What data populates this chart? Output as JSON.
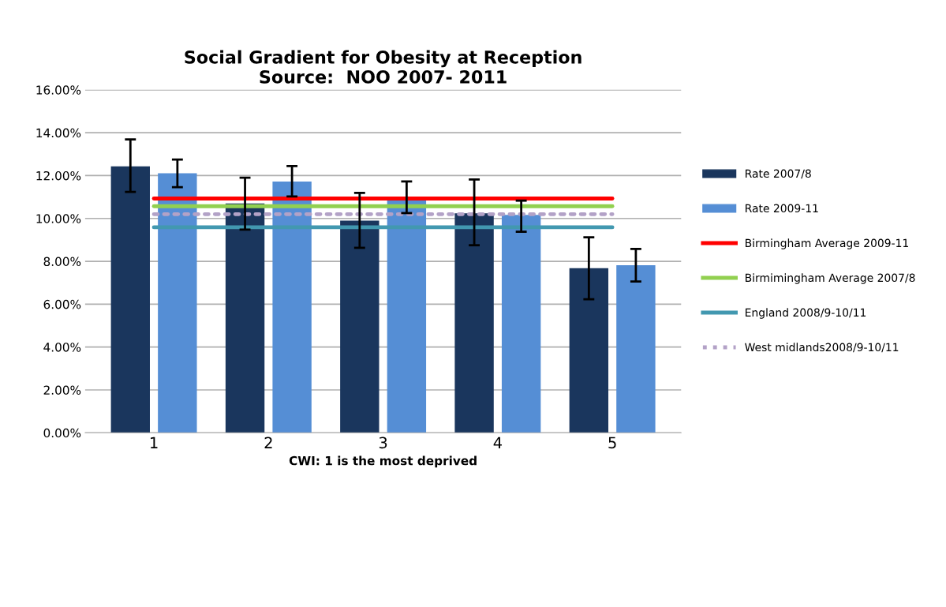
{
  "chart_data": {
    "type": "bar",
    "title": "Social Gradient for Obesity at Reception\nSource:  NOO 2007- 2011",
    "xlabel": "CWI: 1 is the most deprived",
    "categories": [
      "1",
      "2",
      "3",
      "4",
      "5"
    ],
    "series": [
      {
        "name": "Rate 2007/8",
        "color": "#1a365d",
        "values": [
          12.43,
          10.7,
          9.9,
          10.24,
          7.68
        ],
        "errors": [
          [
            11.24,
            13.69
          ],
          [
            9.48,
            11.9
          ],
          [
            8.63,
            11.19
          ],
          [
            8.75,
            11.82
          ],
          [
            6.23,
            9.12
          ]
        ]
      },
      {
        "name": "Rate 2009-11",
        "color": "#558ed5",
        "values": [
          12.11,
          11.72,
          10.86,
          10.17,
          7.82
        ],
        "errors": [
          [
            11.46,
            12.75
          ],
          [
            11.03,
            12.44
          ],
          [
            10.25,
            11.73
          ],
          [
            9.38,
            10.83
          ],
          [
            7.06,
            8.58
          ]
        ]
      },
      {
        "name": "Birmingham Average 2009-11",
        "type": "line",
        "color": "#ff0000",
        "line_style": "solid",
        "values": [
          10.93,
          10.93,
          10.93,
          10.93,
          10.93
        ]
      },
      {
        "name": "Birmimingham Average 2007/8",
        "type": "line",
        "color": "#92d050",
        "line_style": "solid",
        "values": [
          10.57,
          10.57,
          10.57,
          10.57,
          10.57
        ]
      },
      {
        "name": "England 2008/9-10/11",
        "type": "line",
        "color": "#4298b0",
        "line_style": "solid",
        "values": [
          9.59,
          9.59,
          9.59,
          9.59,
          9.59
        ]
      },
      {
        "name": "West midlands2008/9-10/11",
        "type": "line",
        "color": "#b3a2c7",
        "line_style": "dotted",
        "values": [
          10.2,
          10.2,
          10.2,
          10.2,
          10.2
        ]
      }
    ],
    "ylim": [
      0,
      16
    ],
    "yticks": [
      {
        "value": 0,
        "label": "0.00%"
      },
      {
        "value": 2,
        "label": "2.00%"
      },
      {
        "value": 4,
        "label": "4.00%"
      },
      {
        "value": 6,
        "label": "6.00%"
      },
      {
        "value": 8,
        "label": "8.00%"
      },
      {
        "value": 10,
        "label": "10.00%"
      },
      {
        "value": 12,
        "label": "12.00%"
      },
      {
        "value": 14,
        "label": "14.00%"
      },
      {
        "value": 16,
        "label": "16.00%"
      }
    ],
    "grid": "y",
    "legend": "right",
    "marker": "none"
  }
}
